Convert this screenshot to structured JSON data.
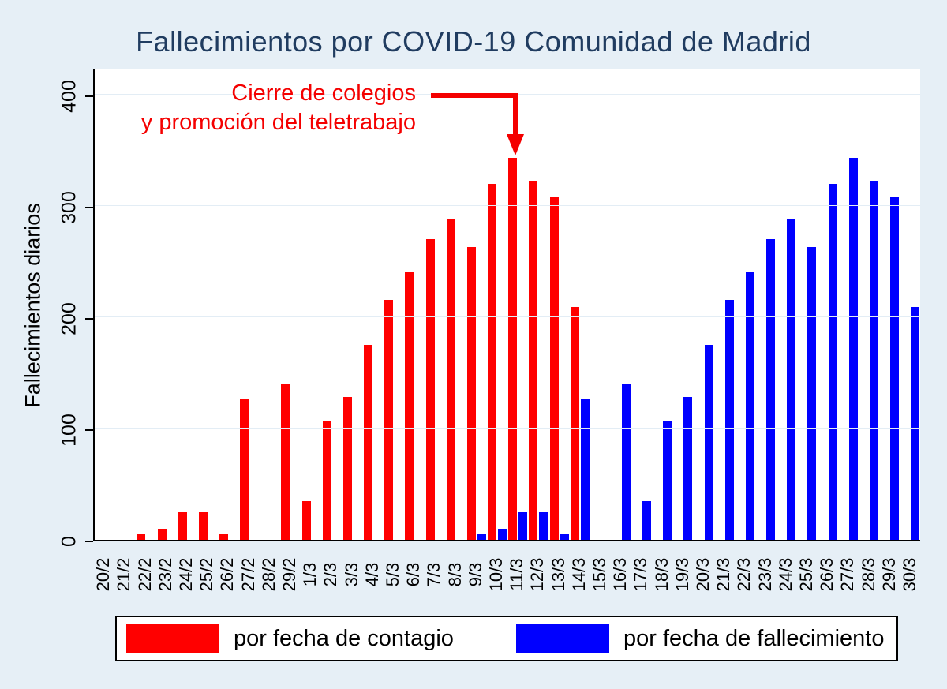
{
  "title": "Fallecimientos por COVID-19 Comunidad de Madrid",
  "y_axis": {
    "label": "Fallecimientos diarios"
  },
  "annotation": {
    "line1": "Cierre de colegios",
    "line2": "y promoción del teletrabajo",
    "color": "#f40000",
    "points_to": "11/3"
  },
  "legend": {
    "items": [
      {
        "label": "por fecha de contagio",
        "color": "#ff0000"
      },
      {
        "label": "por fecha de fallecimiento",
        "color": "#0000ff"
      }
    ]
  },
  "chart_data": {
    "type": "bar",
    "title": "Fallecimientos por COVID-19 Comunidad de Madrid",
    "xlabel": "",
    "ylabel": "Fallecimientos diarios",
    "ylim": [
      0,
      400
    ],
    "yticks": [
      0,
      100,
      200,
      300,
      400
    ],
    "grid": true,
    "legend_position": "bottom",
    "categories": [
      "20/2",
      "21/2",
      "22/2",
      "23/2",
      "24/2",
      "25/2",
      "26/2",
      "27/2",
      "28/2",
      "29/2",
      "1/3",
      "2/3",
      "3/3",
      "4/3",
      "5/3",
      "6/3",
      "7/3",
      "8/3",
      "9/3",
      "10/3",
      "11/3",
      "12/3",
      "13/3",
      "14/3",
      "15/3",
      "16/3",
      "17/3",
      "18/3",
      "19/3",
      "20/3",
      "21/3",
      "22/3",
      "23/3",
      "24/3",
      "25/3",
      "26/3",
      "27/3",
      "28/3",
      "29/3",
      "30/3"
    ],
    "series": [
      {
        "name": "por fecha de contagio",
        "color": "#ff0000",
        "values": [
          0,
          0,
          5,
          10,
          25,
          25,
          5,
          127,
          0,
          141,
          35,
          107,
          129,
          176,
          216,
          241,
          271,
          289,
          264,
          321,
          344,
          324,
          309,
          210,
          0,
          0,
          0,
          0,
          0,
          0,
          0,
          0,
          0,
          0,
          0,
          0,
          0,
          0,
          0,
          0
        ]
      },
      {
        "name": "por fecha de fallecimiento",
        "color": "#0000ff",
        "values": [
          0,
          0,
          0,
          0,
          0,
          0,
          0,
          0,
          0,
          0,
          0,
          0,
          0,
          0,
          0,
          0,
          0,
          0,
          5,
          10,
          25,
          25,
          5,
          127,
          0,
          141,
          35,
          107,
          129,
          176,
          216,
          241,
          271,
          289,
          264,
          321,
          344,
          324,
          309,
          210
        ]
      }
    ],
    "annotation": "Cierre de colegios y promoción del teletrabajo (flecha hacia 11/3)"
  }
}
